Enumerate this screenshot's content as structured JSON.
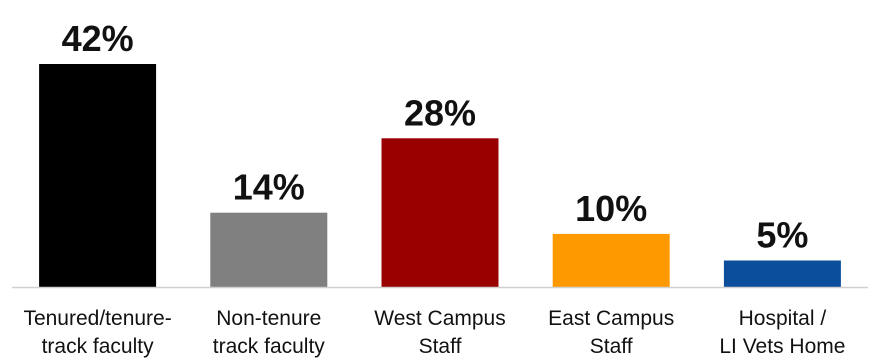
{
  "chart_data": {
    "type": "bar",
    "categories": [
      [
        "Tenured/tenure-",
        "track faculty"
      ],
      [
        "Non-tenure",
        "track faculty"
      ],
      [
        "West Campus",
        "Staff"
      ],
      [
        "East Campus",
        "Staff"
      ],
      [
        "Hospital /",
        "LI Vets Home"
      ]
    ],
    "values": [
      42,
      14,
      28,
      10,
      5
    ],
    "value_labels": [
      "42%",
      "14%",
      "28%",
      "10%",
      "5%"
    ],
    "colors": [
      "#000000",
      "#808080",
      "#990000",
      "#ff9900",
      "#0b4f9c"
    ],
    "baseline_color": "#d0d0d0",
    "ylim": [
      0,
      42
    ],
    "title": "",
    "xlabel": "",
    "ylabel": "",
    "grid": false,
    "legend": "none"
  }
}
